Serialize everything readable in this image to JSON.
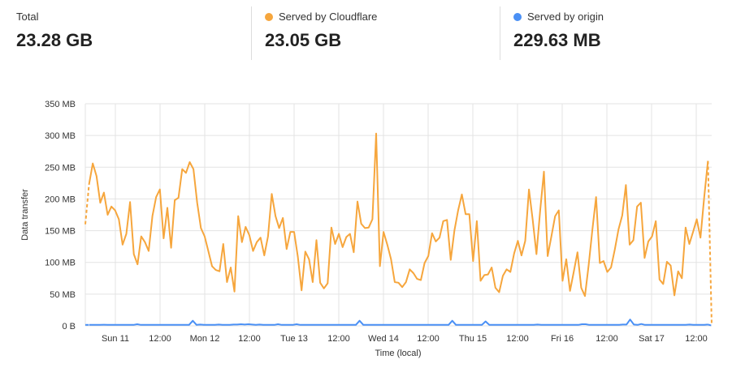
{
  "stats": [
    {
      "label": "Total",
      "value": "23.28 GB",
      "color": null
    },
    {
      "label": "Served by Cloudflare",
      "value": "23.05 GB",
      "color": "#f6a63d"
    },
    {
      "label": "Served by origin",
      "value": "229.63 MB",
      "color": "#4a90f5"
    }
  ],
  "chart_data": {
    "type": "line",
    "xlabel": "Time (local)",
    "ylabel": "Data transfer",
    "ylim": [
      0,
      350
    ],
    "y_ticks": [
      "0 B",
      "50 MB",
      "100 MB",
      "150 MB",
      "200 MB",
      "250 MB",
      "300 MB",
      "350 MB"
    ],
    "y_tick_values": [
      0,
      50,
      100,
      150,
      200,
      250,
      300,
      350
    ],
    "x_ticks": [
      "Sun 11",
      "12:00",
      "Mon 12",
      "12:00",
      "Tue 13",
      "12:00",
      "Wed 14",
      "12:00",
      "Thu 15",
      "12:00",
      "Fri 16",
      "12:00",
      "Sat 17",
      "12:00"
    ],
    "grid": true,
    "unit": "MB",
    "series": [
      {
        "name": "Served by Cloudflare",
        "color": "#f6a63d",
        "values": [
          160,
          223,
          256,
          236,
          194,
          210,
          175,
          188,
          182,
          168,
          128,
          145,
          195,
          113,
          97,
          141,
          132,
          118,
          173,
          203,
          215,
          138,
          186,
          123,
          198,
          202,
          247,
          241,
          258,
          247,
          194,
          154,
          141,
          118,
          94,
          88,
          86,
          129,
          69,
          92,
          54,
          173,
          132,
          156,
          143,
          118,
          132,
          139,
          111,
          141,
          208,
          173,
          154,
          170,
          121,
          148,
          148,
          109,
          56,
          117,
          105,
          69,
          135,
          68,
          59,
          67,
          155,
          129,
          145,
          124,
          140,
          145,
          116,
          196,
          161,
          154,
          155,
          168,
          303,
          94,
          148,
          128,
          105,
          69,
          68,
          61,
          69,
          89,
          83,
          74,
          72,
          99,
          110,
          146,
          133,
          139,
          165,
          167,
          104,
          150,
          182,
          207,
          176,
          176,
          102,
          165,
          71,
          80,
          81,
          92,
          60,
          53,
          79,
          89,
          85,
          114,
          134,
          111,
          134,
          215,
          167,
          113,
          182,
          243,
          110,
          141,
          173,
          182,
          71,
          105,
          55,
          85,
          116,
          60,
          47,
          96,
          151,
          203,
          99,
          102,
          85,
          92,
          120,
          152,
          174,
          222,
          128,
          135,
          188,
          194,
          107,
          133,
          141,
          165,
          73,
          66,
          101,
          95,
          48,
          86,
          75,
          155,
          129,
          148,
          168,
          139,
          203,
          260,
          2
        ]
      },
      {
        "name": "Served by origin",
        "color": "#4a90f5",
        "values": [
          1.5,
          1.5,
          1.5,
          1.5,
          1.5,
          1.8,
          1.5,
          1.5,
          1.5,
          1.5,
          1.5,
          1.5,
          1.5,
          1.5,
          2.5,
          1.5,
          1.5,
          1.5,
          1.5,
          1.5,
          1.5,
          1.5,
          1.5,
          1.5,
          1.5,
          1.5,
          1.5,
          1.5,
          1.5,
          8,
          1.5,
          2,
          1.5,
          1.5,
          1.5,
          1.5,
          2,
          1.5,
          1.5,
          1.5,
          2,
          2,
          2.5,
          2,
          2.5,
          2,
          1.5,
          2,
          1.5,
          1.5,
          1.5,
          1.5,
          2.5,
          1.5,
          1.5,
          1.5,
          1.5,
          2.5,
          1.5,
          1.5,
          1.5,
          1.5,
          1.5,
          1.5,
          1.5,
          1.5,
          1.5,
          1.5,
          1.5,
          1.5,
          1.5,
          1.5,
          1.5,
          1.5,
          8,
          1.5,
          1.5,
          1.5,
          1.5,
          1.5,
          1.5,
          1.5,
          1.5,
          1.5,
          1.5,
          1.5,
          1.5,
          1.5,
          1.5,
          1.5,
          1.5,
          1.5,
          1.5,
          1.5,
          1.5,
          1.5,
          1.5,
          1.5,
          1.5,
          8,
          1.5,
          1.5,
          1.5,
          1.5,
          1.5,
          1.5,
          1.5,
          1.5,
          7,
          1.5,
          1.5,
          1.5,
          1.5,
          1.5,
          1.5,
          1.5,
          1.5,
          1.5,
          1.5,
          1.5,
          1.5,
          1.5,
          2,
          1.5,
          1.5,
          1.5,
          1.5,
          1.5,
          1.5,
          1.5,
          1.5,
          1.5,
          1.5,
          1.5,
          2.5,
          2.5,
          1.5,
          1.5,
          1.5,
          1.5,
          1.5,
          1.5,
          1.5,
          1.5,
          1.5,
          2,
          2,
          10,
          2,
          1.5,
          3,
          1.5,
          1.5,
          1.5,
          1.5,
          1.5,
          1.5,
          1.5,
          1.5,
          1.5,
          1.5,
          1.5,
          1.5,
          2,
          1.5,
          1.5,
          1.5,
          1.5,
          2,
          0.5
        ]
      }
    ]
  }
}
